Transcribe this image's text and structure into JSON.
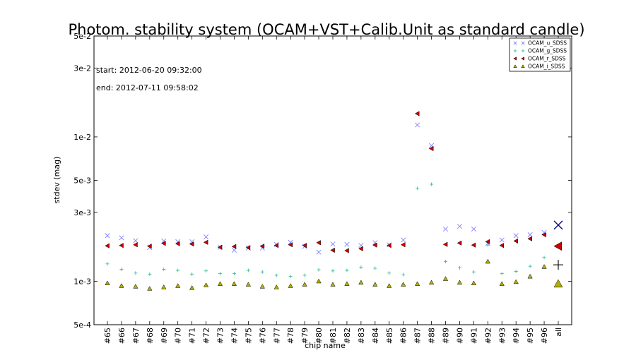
{
  "chart_data": {
    "type": "scatter",
    "title": "Photom. stability system (OCAM+VST+Calib.Unit as standard candle)",
    "xlabel": "chip name",
    "ylabel": "stdev (mag)",
    "yscale": "log",
    "ylim": [
      0.0005,
      0.05
    ],
    "yticks": [
      {
        "value": 0.05,
        "label": "5e-2"
      },
      {
        "value": 0.03,
        "label": "3e-2"
      },
      {
        "value": 0.01,
        "label": "1e-2"
      },
      {
        "value": 0.005,
        "label": "5e-3"
      },
      {
        "value": 0.003,
        "label": "3e-3"
      },
      {
        "value": 0.001,
        "label": "1e-3"
      },
      {
        "value": 0.0005,
        "label": "5e-4"
      }
    ],
    "annotations": [
      "start: 2012-06-20 09:32:00",
      "end: 2012-07-11 09:58:02"
    ],
    "legend_position": "top-right",
    "categories": [
      "#65",
      "#66",
      "#67",
      "#68",
      "#69",
      "#70",
      "#71",
      "#72",
      "#73",
      "#74",
      "#75",
      "#76",
      "#77",
      "#78",
      "#79",
      "#80",
      "#81",
      "#82",
      "#83",
      "#84",
      "#85",
      "#86",
      "#87",
      "#88",
      "#89",
      "#90",
      "#91",
      "#92",
      "#93",
      "#94",
      "#95",
      "#96",
      "all"
    ],
    "series": [
      {
        "name": "OCAM_u_SDSS",
        "marker": "x",
        "color": "#8080ff",
        "summary_color": "#000080",
        "values": [
          0.00207,
          0.002,
          0.00191,
          0.00171,
          0.0019,
          0.00188,
          0.00188,
          0.00203,
          0.00172,
          0.00164,
          0.0017,
          0.0017,
          0.0018,
          0.00186,
          0.00174,
          0.00159,
          0.00181,
          0.0018,
          0.00177,
          0.00185,
          0.00179,
          0.00193,
          0.0121,
          0.0087,
          0.0023,
          0.0024,
          0.0023,
          0.00183,
          0.00193,
          0.00207,
          0.0021,
          0.00218,
          0.00245
        ]
      },
      {
        "name": "OCAM_g_SDSS",
        "marker": "plus",
        "color": "#40c0a0",
        "summary_color": "#000000",
        "values": [
          0.00132,
          0.00121,
          0.00114,
          0.00112,
          0.00121,
          0.00119,
          0.00112,
          0.00118,
          0.00113,
          0.00113,
          0.00119,
          0.00116,
          0.0011,
          0.00108,
          0.0011,
          0.0012,
          0.00118,
          0.00119,
          0.00125,
          0.00123,
          0.00114,
          0.00111,
          0.0044,
          0.0047,
          0.00137,
          0.00124,
          0.00116,
          0.00178,
          0.00113,
          0.00117,
          0.00127,
          0.00146,
          0.0013
        ]
      },
      {
        "name": "OCAM_r_SDSS",
        "marker": "triangle-left",
        "color": "#cc0000",
        "summary_color": "#cc0000",
        "values": [
          0.00176,
          0.00177,
          0.00179,
          0.00175,
          0.00183,
          0.00182,
          0.00181,
          0.00186,
          0.00172,
          0.00174,
          0.00171,
          0.00175,
          0.00177,
          0.00179,
          0.00177,
          0.00185,
          0.00164,
          0.00163,
          0.00168,
          0.00178,
          0.00177,
          0.00179,
          0.0145,
          0.0083,
          0.0018,
          0.00184,
          0.00178,
          0.00188,
          0.00177,
          0.0019,
          0.00197,
          0.0021,
          0.00175
        ]
      },
      {
        "name": "OCAM_i_SDSS",
        "marker": "triangle-up",
        "color": "#b0b000",
        "summary_color": "#b0b000",
        "values": [
          0.00097,
          0.00093,
          0.00092,
          0.00089,
          0.00091,
          0.00093,
          0.0009,
          0.00094,
          0.00096,
          0.00096,
          0.00095,
          0.00092,
          0.00091,
          0.00093,
          0.00095,
          0.001,
          0.00095,
          0.00096,
          0.00098,
          0.00095,
          0.00093,
          0.00095,
          0.00096,
          0.00098,
          0.00104,
          0.00098,
          0.00097,
          0.00137,
          0.00096,
          0.00099,
          0.00108,
          0.00126,
          0.00096
        ]
      }
    ]
  }
}
